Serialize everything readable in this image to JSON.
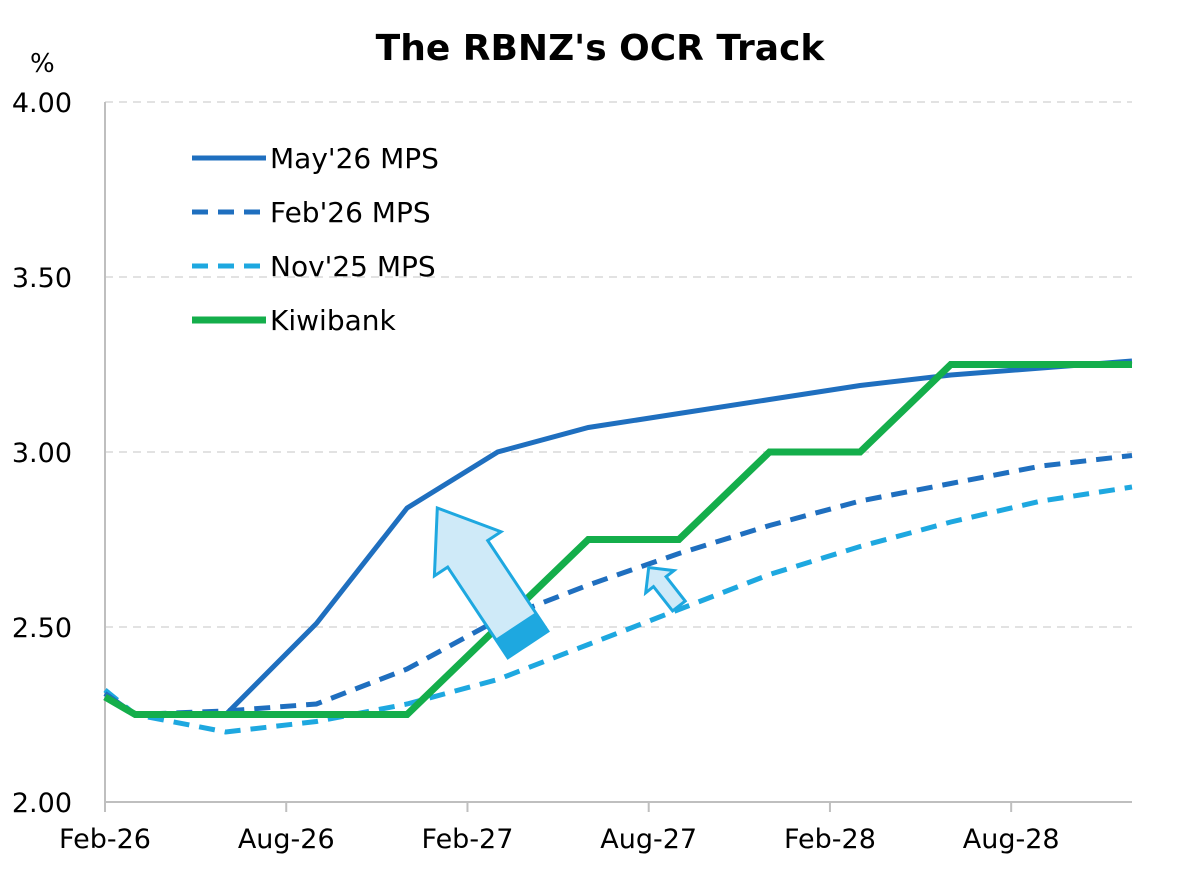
{
  "colors": {
    "may26": "#1F6FBF",
    "feb26": "#1F6FBF",
    "nov25": "#1EA8E0",
    "kiwibank": "#14AE4B",
    "arrow_fill": "#CFEAF8",
    "arrow_stroke": "#1EA8E0",
    "grid": "#D9D9D9",
    "axis": "#BFBFBF"
  },
  "chart_data": {
    "type": "line",
    "title": "The RBNZ's OCR Track",
    "ylabel": "%",
    "xlabel": "",
    "ylim": [
      2.0,
      4.0
    ],
    "xlim": [
      "2026-02",
      "2028-12"
    ],
    "grid": "horizontal dashed",
    "legend_position": "top-left",
    "y_ticks": [
      "2.00",
      "2.50",
      "3.00",
      "3.50",
      "4.00"
    ],
    "x_ticks": [
      {
        "label": "Feb-26",
        "date": "2026-02"
      },
      {
        "label": "Aug-26",
        "date": "2026-08"
      },
      {
        "label": "Feb-27",
        "date": "2027-02"
      },
      {
        "label": "Aug-27",
        "date": "2027-08"
      },
      {
        "label": "Feb-28",
        "date": "2028-02"
      },
      {
        "label": "Aug-28",
        "date": "2028-08"
      }
    ],
    "series": [
      {
        "name": "May'26 MPS",
        "style": "solid",
        "points": [
          [
            "2026-02",
            2.31
          ],
          [
            "2026-03",
            2.25
          ],
          [
            "2026-06",
            2.25
          ],
          [
            "2026-09",
            2.51
          ],
          [
            "2026-12",
            2.84
          ],
          [
            "2027-03",
            3.0
          ],
          [
            "2027-06",
            3.07
          ],
          [
            "2027-09",
            3.11
          ],
          [
            "2027-12",
            3.15
          ],
          [
            "2028-03",
            3.19
          ],
          [
            "2028-06",
            3.22
          ],
          [
            "2028-09",
            3.24
          ],
          [
            "2028-12",
            3.26
          ]
        ]
      },
      {
        "name": "Feb'26 MPS",
        "style": "dashed",
        "points": [
          [
            "2026-02",
            2.31
          ],
          [
            "2026-03",
            2.25
          ],
          [
            "2026-06",
            2.26
          ],
          [
            "2026-09",
            2.28
          ],
          [
            "2026-12",
            2.38
          ],
          [
            "2027-03",
            2.52
          ],
          [
            "2027-06",
            2.62
          ],
          [
            "2027-09",
            2.71
          ],
          [
            "2027-12",
            2.79
          ],
          [
            "2028-03",
            2.86
          ],
          [
            "2028-06",
            2.91
          ],
          [
            "2028-09",
            2.96
          ],
          [
            "2028-12",
            2.99
          ]
        ]
      },
      {
        "name": "Nov'25 MPS",
        "style": "dashed",
        "points": [
          [
            "2026-02",
            2.32
          ],
          [
            "2026-03",
            2.25
          ],
          [
            "2026-06",
            2.2
          ],
          [
            "2026-09",
            2.23
          ],
          [
            "2026-12",
            2.28
          ],
          [
            "2027-03",
            2.35
          ],
          [
            "2027-06",
            2.45
          ],
          [
            "2027-09",
            2.55
          ],
          [
            "2027-12",
            2.65
          ],
          [
            "2028-03",
            2.73
          ],
          [
            "2028-06",
            2.8
          ],
          [
            "2028-09",
            2.86
          ],
          [
            "2028-12",
            2.9
          ]
        ]
      },
      {
        "name": "Kiwibank",
        "style": "solid-thick",
        "points": [
          [
            "2026-02",
            2.3
          ],
          [
            "2026-03",
            2.25
          ],
          [
            "2026-12",
            2.25
          ],
          [
            "2027-06",
            2.75
          ],
          [
            "2027-09",
            2.75
          ],
          [
            "2027-12",
            3.0
          ],
          [
            "2028-03",
            3.0
          ],
          [
            "2028-06",
            3.25
          ],
          [
            "2028-12",
            3.25
          ]
        ]
      }
    ],
    "annotations": [
      {
        "type": "arrow",
        "size": "large",
        "from": [
          "2027-04",
          2.45
        ],
        "to": [
          "2027-01",
          2.84
        ],
        "meaning": "upward shift"
      },
      {
        "type": "arrow",
        "size": "small",
        "from": [
          "2027-09",
          2.56
        ],
        "to": [
          "2027-08",
          2.67
        ],
        "meaning": "upward shift"
      }
    ]
  }
}
